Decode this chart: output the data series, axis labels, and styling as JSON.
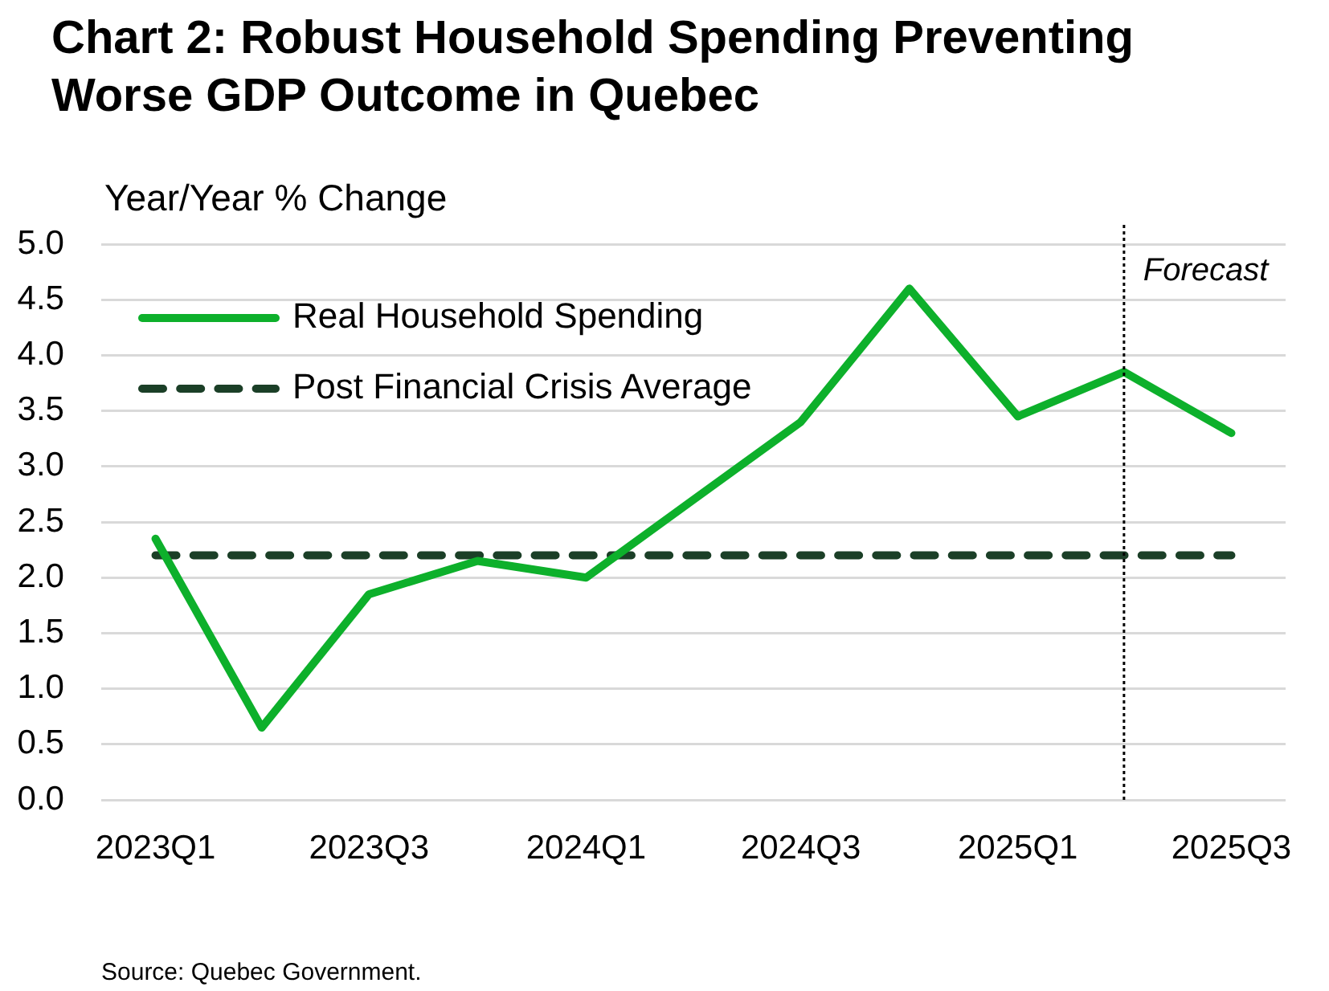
{
  "chart_data": {
    "type": "line",
    "title": "Chart 2: Robust Household Spending Preventing Worse GDP Outcome in Quebec",
    "ylabel": "Year/Year % Change",
    "annotations": [
      "Source: Quebec Government."
    ],
    "x": [
      "2023-01",
      "2023-04",
      "2023-07",
      "2023-10",
      "2024-01",
      "2024-04",
      "2024-07",
      "2024-10",
      "2025-01",
      "2025-04",
      "2025-07"
    ],
    "series": [
      {
        "name": "Real Household Spending",
        "color": "#0db02b",
        "values": [
          2.35,
          0.65,
          1.85,
          2.15,
          2.0,
          2.7,
          3.4,
          4.6,
          3.45,
          3.85,
          3.3
        ]
      },
      {
        "name": "Post Financial Crisis Average",
        "color": "#1b3f27",
        "line_style": "dashed",
        "values": [
          2.2,
          2.2,
          2.2,
          2.2,
          2.2,
          2.2,
          2.2,
          2.2,
          2.2,
          2.2,
          2.2
        ]
      }
    ],
    "xlim": [
      "2022-11-16",
      "2025-08-16"
    ],
    "xticks": [
      {
        "value": "2023-01",
        "label": "2023Q1"
      },
      {
        "value": "2023-07",
        "label": "2023Q3"
      },
      {
        "value": "2024-01",
        "label": "2024Q1"
      },
      {
        "value": "2024-07",
        "label": "2024Q3"
      },
      {
        "value": "2025-01",
        "label": "2025Q1"
      },
      {
        "value": "2025-07",
        "label": "2025Q3"
      }
    ],
    "ylim": [
      0,
      5
    ],
    "yticks": [
      {
        "value": 0,
        "label": "0.0"
      },
      {
        "value": 0.5,
        "label": "0.5"
      },
      {
        "value": 1,
        "label": "1.0"
      },
      {
        "value": 1.5,
        "label": "1.5"
      },
      {
        "value": 2,
        "label": "2.0"
      },
      {
        "value": 2.5,
        "label": "2.5"
      },
      {
        "value": 3,
        "label": "3.0"
      },
      {
        "value": 3.5,
        "label": "3.5"
      },
      {
        "value": 4,
        "label": "4.0"
      },
      {
        "value": 4.5,
        "label": "4.5"
      },
      {
        "value": 5,
        "label": "5.0"
      }
    ],
    "grid": "y",
    "legend": "top left",
    "ref_lines": [
      {
        "axis": "x",
        "value": "2025-04",
        "label": "Forecast",
        "color": "#000000",
        "line_style": "dotted"
      }
    ]
  }
}
